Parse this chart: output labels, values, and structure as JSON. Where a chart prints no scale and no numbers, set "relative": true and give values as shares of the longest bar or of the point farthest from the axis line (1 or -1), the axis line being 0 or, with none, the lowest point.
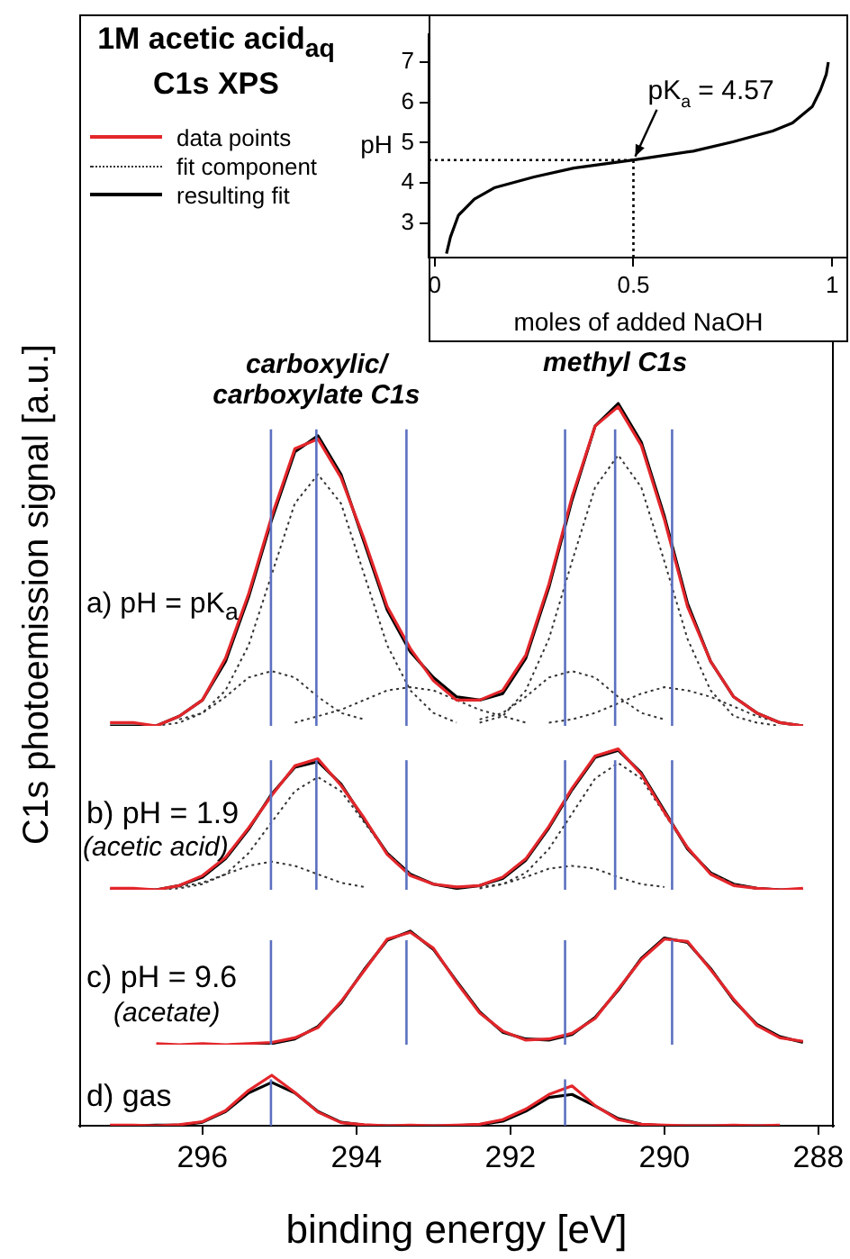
{
  "chart_data": [
    {
      "type": "line",
      "title": "1M acetic acid$_{aq}$\nC1s XPS",
      "ylabel": "C1s photoemission signal [a.u.]",
      "relative": true,
      "legend": "top left",
      "tick_labels": false,
      "xlim": [
        297.6,
        287.8
      ],
      "x": [
        297.2,
        296.9,
        296.6,
        296.3,
        296.0,
        295.7,
        295.4,
        295.1,
        294.8,
        294.5,
        294.2,
        293.9,
        293.6,
        293.3,
        293.0,
        292.7,
        292.4,
        292.1,
        291.8,
        291.5,
        291.2,
        290.9,
        290.6,
        290.3,
        290.0,
        289.7,
        289.4,
        289.1,
        288.8,
        288.5,
        288.2
      ],
      "series": [
        {
          "name": "data points",
          "color": "#e3262b",
          "line_style": "solid",
          "values": [
            0.01,
            0.01,
            0,
            0.03,
            0.08,
            0.21,
            0.41,
            0.65,
            0.86,
            0.89,
            0.77,
            0.58,
            0.37,
            0.24,
            0.14,
            0.08,
            0.08,
            0.11,
            0.22,
            0.44,
            0.71,
            0.93,
            0.99,
            0.87,
            0.64,
            0.37,
            0.2,
            0.09,
            0.04,
            0.01,
            0
          ]
        },
        {
          "name": "fit component",
          "color": "#333333",
          "line_style": "dotted",
          "values": [
            null,
            null,
            null,
            0.02,
            0.04,
            0.09,
            0.15,
            0.17,
            0.15,
            0.09,
            0.04,
            0.02,
            null,
            null,
            null,
            null,
            null,
            null,
            null,
            null,
            null,
            null,
            null,
            null,
            null,
            null,
            null,
            null,
            null,
            null,
            null
          ]
        },
        {
          "color": "#333333",
          "line_style": "dotted",
          "values": [
            null,
            null,
            0,
            0.01,
            0.04,
            0.11,
            0.25,
            0.47,
            0.69,
            0.78,
            0.69,
            0.47,
            0.25,
            0.11,
            0.04,
            0.01,
            null,
            null,
            null,
            null,
            null,
            null,
            null,
            null,
            null,
            null,
            null,
            null,
            null,
            null,
            null
          ]
        },
        {
          "color": "#333333",
          "line_style": "dotted",
          "values": [
            null,
            null,
            null,
            null,
            null,
            null,
            null,
            null,
            0.01,
            0.03,
            0.05,
            0.08,
            0.11,
            0.12,
            0.11,
            0.08,
            0.05,
            0.03,
            0.01,
            null,
            null,
            null,
            null,
            null,
            null,
            null,
            null,
            null,
            null,
            null,
            null
          ]
        },
        {
          "color": "#333333",
          "line_style": "dotted",
          "values": [
            null,
            null,
            null,
            null,
            null,
            null,
            null,
            null,
            null,
            null,
            null,
            null,
            null,
            null,
            null,
            null,
            0.02,
            0.04,
            0.09,
            0.15,
            0.17,
            0.15,
            0.09,
            0.04,
            0.02,
            null,
            null,
            null,
            null,
            null,
            null
          ]
        },
        {
          "color": "#333333",
          "line_style": "dotted",
          "values": [
            null,
            null,
            null,
            null,
            null,
            null,
            null,
            null,
            null,
            null,
            null,
            null,
            null,
            null,
            null,
            null,
            0.01,
            0.03,
            0.11,
            0.27,
            0.51,
            0.74,
            0.84,
            0.74,
            0.51,
            0.27,
            0.11,
            0.03,
            0.01,
            0,
            null
          ]
        },
        {
          "color": "#333333",
          "line_style": "dotted",
          "values": [
            null,
            null,
            null,
            null,
            null,
            null,
            null,
            null,
            null,
            null,
            null,
            null,
            null,
            null,
            null,
            null,
            null,
            null,
            null,
            0.01,
            0.02,
            0.04,
            0.07,
            0.1,
            0.12,
            0.11,
            0.09,
            0.06,
            0.03,
            0.01,
            null
          ]
        },
        {
          "name": "resulting fit",
          "color": "#000000",
          "line_style": "solid",
          "values": [
            0,
            0,
            0,
            0.03,
            0.08,
            0.2,
            0.4,
            0.64,
            0.85,
            0.9,
            0.78,
            0.57,
            0.36,
            0.23,
            0.15,
            0.09,
            0.08,
            0.1,
            0.21,
            0.43,
            0.7,
            0.93,
            1,
            0.88,
            0.65,
            0.38,
            0.2,
            0.09,
            0.04,
            0.01,
            0
          ]
        }
      ],
      "annotations": [
        "a) pH = pK$_{a}$",
        {
          "text": "carboxylic/\ncarboxylate C1s",
          "x": 294.52,
          "y": 0.9
        },
        {
          "text": "methyl C1s",
          "x": 290.64,
          "y": 1
        }
      ],
      "ref_lines": [
        {
          "axis": "x",
          "value": 295.11,
          "color": "#5b70c0"
        },
        {
          "axis": "x",
          "value": 294.52,
          "color": "#5b70c0"
        },
        {
          "axis": "x",
          "value": 293.35,
          "color": "#5b70c0"
        },
        {
          "axis": "x",
          "value": 291.29,
          "color": "#5b70c0"
        },
        {
          "axis": "x",
          "value": 290.64,
          "color": "#5b70c0"
        },
        {
          "axis": "x",
          "value": 289.9,
          "color": "#5b70c0"
        }
      ]
    },
    {
      "type": "line",
      "relative": true,
      "tick_labels": false,
      "xlim": [
        297.6,
        287.8
      ],
      "x": [
        297.2,
        296.9,
        296.6,
        296.3,
        296.0,
        295.7,
        295.4,
        295.1,
        294.8,
        294.5,
        294.2,
        293.9,
        293.6,
        293.3,
        293.0,
        292.7,
        292.4,
        292.1,
        291.8,
        291.5,
        291.2,
        290.9,
        290.6,
        290.3,
        290.0,
        289.7,
        289.4,
        289.1,
        288.8,
        288.5,
        288.2
      ],
      "series": [
        {
          "color": "#e3262b",
          "line_style": "solid",
          "values": [
            0.01,
            0.01,
            0,
            0.03,
            0.1,
            0.23,
            0.44,
            0.67,
            0.88,
            0.93,
            0.74,
            0.51,
            0.25,
            0.1,
            0.04,
            0.02,
            0.03,
            0.09,
            0.22,
            0.45,
            0.72,
            0.95,
            1,
            0.82,
            0.55,
            0.3,
            0.11,
            0.03,
            0.01,
            0,
            0.01
          ]
        },
        {
          "color": "#333333",
          "line_style": "dotted",
          "values": [
            null,
            null,
            null,
            0.02,
            0.05,
            0.11,
            0.17,
            0.2,
            0.17,
            0.11,
            0.05,
            0.02,
            null,
            null,
            null,
            null,
            null,
            null,
            null,
            null,
            null,
            null,
            null,
            null,
            null,
            null,
            null,
            null,
            null,
            null,
            null
          ]
        },
        {
          "color": "#333333",
          "line_style": "dotted",
          "values": [
            null,
            null,
            0,
            0.01,
            0.04,
            0.11,
            0.26,
            0.48,
            0.7,
            0.8,
            0.7,
            0.48,
            0.26,
            0.11,
            0.04,
            0.01,
            null,
            null,
            null,
            null,
            null,
            null,
            null,
            null,
            null,
            null,
            null,
            null,
            null,
            null,
            null
          ]
        },
        {
          "color": "#333333",
          "line_style": "dotted",
          "values": [
            null,
            null,
            null,
            null,
            null,
            null,
            null,
            null,
            null,
            null,
            null,
            null,
            null,
            null,
            null,
            null,
            0.02,
            0.04,
            0.09,
            0.15,
            0.17,
            0.15,
            0.09,
            0.04,
            0.02,
            null,
            null,
            null,
            null,
            null,
            null
          ]
        },
        {
          "color": "#333333",
          "line_style": "dotted",
          "values": [
            null,
            null,
            null,
            null,
            null,
            null,
            null,
            null,
            null,
            null,
            null,
            null,
            null,
            null,
            null,
            null,
            0.01,
            0.04,
            0.12,
            0.29,
            0.54,
            0.79,
            0.9,
            0.79,
            0.54,
            0.29,
            0.12,
            0.04,
            0.01,
            0,
            null
          ]
        },
        {
          "color": "#000000",
          "line_style": "solid",
          "values": [
            0,
            0,
            0,
            0.03,
            0.09,
            0.22,
            0.43,
            0.68,
            0.87,
            0.91,
            0.75,
            0.5,
            0.26,
            0.11,
            0.04,
            0.01,
            0.03,
            0.08,
            0.21,
            0.44,
            0.71,
            0.94,
            0.99,
            0.83,
            0.56,
            0.29,
            0.12,
            0.04,
            0.01,
            0,
            0
          ]
        }
      ],
      "annotations": [
        "b) pH = 1.9",
        "(acetic acid)"
      ],
      "ref_lines": [
        {
          "axis": "x",
          "value": 295.11,
          "color": "#5b70c0"
        },
        {
          "axis": "x",
          "value": 294.52,
          "color": "#5b70c0"
        },
        {
          "axis": "x",
          "value": 293.35,
          "color": "#5b70c0"
        },
        {
          "axis": "x",
          "value": 291.29,
          "color": "#5b70c0"
        },
        {
          "axis": "x",
          "value": 290.64,
          "color": "#5b70c0"
        },
        {
          "axis": "x",
          "value": 289.9,
          "color": "#5b70c0"
        }
      ]
    },
    {
      "type": "line",
      "relative": true,
      "tick_labels": false,
      "xlim": [
        297.6,
        287.8
      ],
      "x": [
        296.6,
        296.3,
        296.0,
        295.7,
        295.4,
        295.1,
        294.8,
        294.5,
        294.2,
        293.9,
        293.6,
        293.3,
        293.0,
        292.7,
        292.4,
        292.1,
        291.8,
        291.5,
        291.2,
        290.9,
        290.6,
        290.3,
        290.0,
        289.7,
        289.4,
        289.1,
        288.8,
        288.5,
        288.2
      ],
      "series": [
        {
          "color": "#e3262b",
          "line_style": "solid",
          "values": [
            0.01,
            0,
            0.01,
            0,
            0.01,
            0.02,
            0.06,
            0.15,
            0.38,
            0.65,
            0.93,
            0.99,
            0.85,
            0.55,
            0.28,
            0.12,
            0.04,
            0.05,
            0.1,
            0.23,
            0.49,
            0.75,
            0.93,
            0.91,
            0.66,
            0.4,
            0.17,
            0.06,
            0.03
          ]
        },
        {
          "color": "#000000",
          "line_style": "solid",
          "values": [
            null,
            null,
            null,
            null,
            0,
            0.01,
            0.05,
            0.16,
            0.37,
            0.66,
            0.92,
            1,
            0.84,
            0.56,
            0.29,
            0.11,
            0.05,
            0.04,
            0.09,
            0.24,
            0.48,
            0.76,
            0.94,
            0.9,
            0.67,
            0.39,
            0.18,
            0.07,
            0.02
          ]
        }
      ],
      "annotations": [
        "c) pH = 9.6",
        "(acetate)"
      ],
      "ref_lines": [
        {
          "axis": "x",
          "value": 295.11,
          "color": "#5b70c0"
        },
        {
          "axis": "x",
          "value": 293.35,
          "color": "#5b70c0"
        },
        {
          "axis": "x",
          "value": 291.29,
          "color": "#5b70c0"
        },
        {
          "axis": "x",
          "value": 289.9,
          "color": "#5b70c0"
        }
      ]
    },
    {
      "type": "line",
      "relative": true,
      "tick_labels": "x",
      "xlim": [
        297.6,
        287.8
      ],
      "xticks": [
        296,
        294,
        292,
        290,
        288
      ],
      "xlabel": "binding energy [eV]",
      "x": [
        297.2,
        296.9,
        296.6,
        296.3,
        296.0,
        295.7,
        295.4,
        295.1,
        294.8,
        294.5,
        294.2,
        293.9,
        293.6,
        293.3,
        293.0,
        292.7,
        292.4,
        292.1,
        291.8,
        291.5,
        291.2,
        290.9,
        290.6,
        290.3,
        290.0,
        289.7,
        289.4,
        289.1,
        288.8,
        288.5
      ],
      "series": [
        {
          "color": "#e3262b",
          "line_style": "solid",
          "values": [
            0.01,
            0.01,
            0,
            0.02,
            0.08,
            0.3,
            0.7,
            1,
            0.66,
            0.27,
            0.06,
            0.02,
            0,
            0.01,
            0,
            0.01,
            0.03,
            0.12,
            0.33,
            0.62,
            0.79,
            0.4,
            0.12,
            0.03,
            0.01,
            0,
            0,
            0.01,
            0,
            0.01
          ]
        },
        {
          "color": "#000000",
          "line_style": "solid",
          "values": [
            0,
            0,
            0.01,
            0.01,
            0.07,
            0.28,
            0.65,
            0.86,
            0.65,
            0.28,
            0.07,
            0.01,
            0,
            0,
            0,
            0,
            0.02,
            0.09,
            0.29,
            0.56,
            0.62,
            0.39,
            0.14,
            0.03,
            0,
            0,
            0,
            0,
            0,
            0
          ]
        }
      ],
      "annotations": [
        "d) gas"
      ],
      "ref_lines": [
        {
          "axis": "x",
          "value": 295.11,
          "color": "#5b70c0"
        },
        {
          "axis": "x",
          "value": 291.29,
          "color": "#5b70c0"
        }
      ]
    },
    {
      "type": "line",
      "xlabel": "moles of added NaOH",
      "ylabel": "pH",
      "xlim": [
        -0.015,
        1.04
      ],
      "xticks": [
        0,
        0.5,
        1
      ],
      "ylim": [
        2.15,
        7.7
      ],
      "yticks": [
        3,
        4,
        5,
        6,
        7
      ],
      "x": [
        0.03,
        0.04,
        0.06,
        0.08,
        0.1,
        0.15,
        0.25,
        0.35,
        0.5,
        0.65,
        0.75,
        0.85,
        0.9,
        0.95,
        0.97,
        0.985,
        0.99
      ],
      "series": [
        {
          "color": "#000000",
          "line_style": "solid",
          "values": [
            2.25,
            2.66,
            3.2,
            3.4,
            3.6,
            3.88,
            4.15,
            4.37,
            4.57,
            4.79,
            5.02,
            5.29,
            5.49,
            5.9,
            6.3,
            6.7,
            7.0
          ]
        }
      ],
      "annotations": [
        {
          "text": "pK$_{a}$ = 4.57",
          "x": 0.5,
          "y": 4.57
        }
      ],
      "ref_lines": [
        {
          "axis": "x",
          "value": 0.5,
          "color": "#000000",
          "line_style": "dotted"
        },
        {
          "axis": "y",
          "value": 4.57,
          "color": "#000000",
          "line_style": "dotted"
        }
      ]
    }
  ]
}
